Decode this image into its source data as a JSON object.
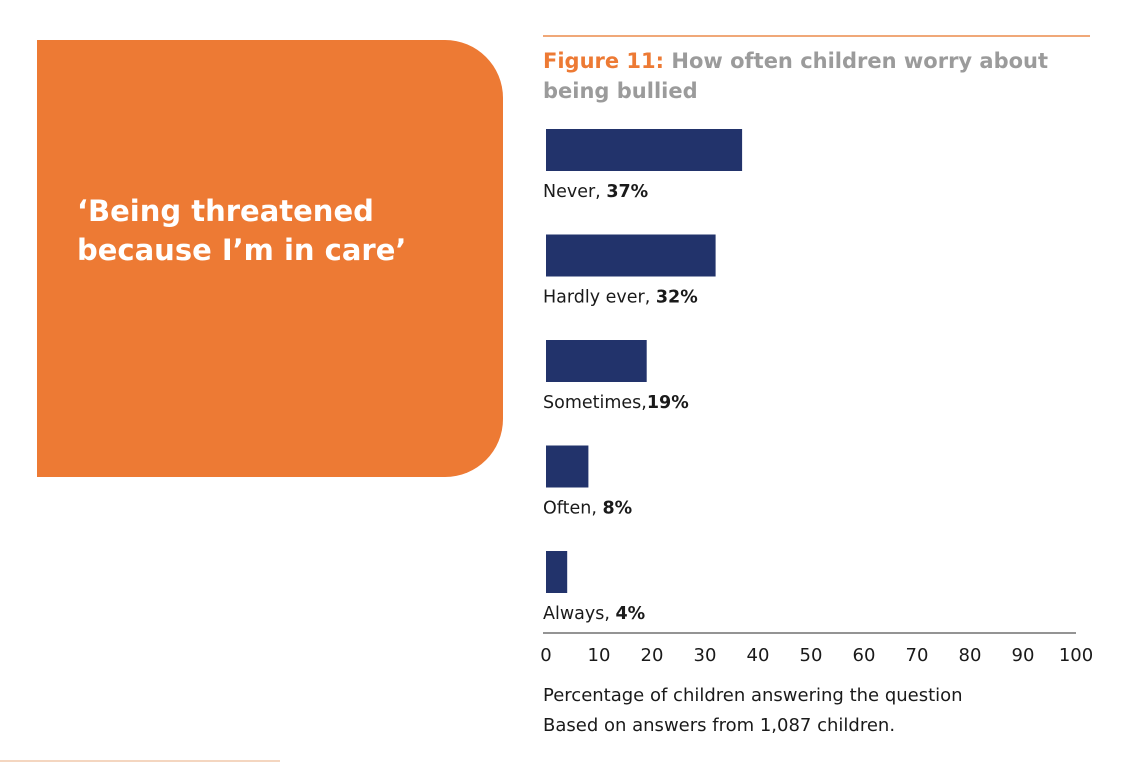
{
  "quote": "‘Being threatened because I’m in care’",
  "figure": {
    "number": "Figure 11:",
    "title": "How often children worry about being bullied"
  },
  "chart_data": {
    "type": "bar",
    "orientation": "horizontal",
    "categories": [
      "Never",
      "Hardly ever",
      "Sometimes",
      "Often",
      "Always"
    ],
    "values": [
      37,
      32,
      19,
      8,
      4
    ],
    "value_labels": [
      "37%",
      "32%",
      "19%",
      "8%",
      "4%"
    ],
    "separators": [
      ", ",
      ", ",
      ",",
      ", ",
      ", "
    ],
    "bar_color": "#22336b",
    "xlim": [
      0,
      100
    ],
    "xticks": [
      0,
      10,
      20,
      30,
      40,
      50,
      60,
      70,
      80,
      90,
      100
    ],
    "grid": false
  },
  "caption": {
    "xlabel": "Percentage of children answering the question",
    "note": "Based on answers from 1,087 children."
  },
  "colors": {
    "accent": "#ed7a34",
    "bar": "#22336b",
    "title_gray": "#9b9b9b"
  }
}
